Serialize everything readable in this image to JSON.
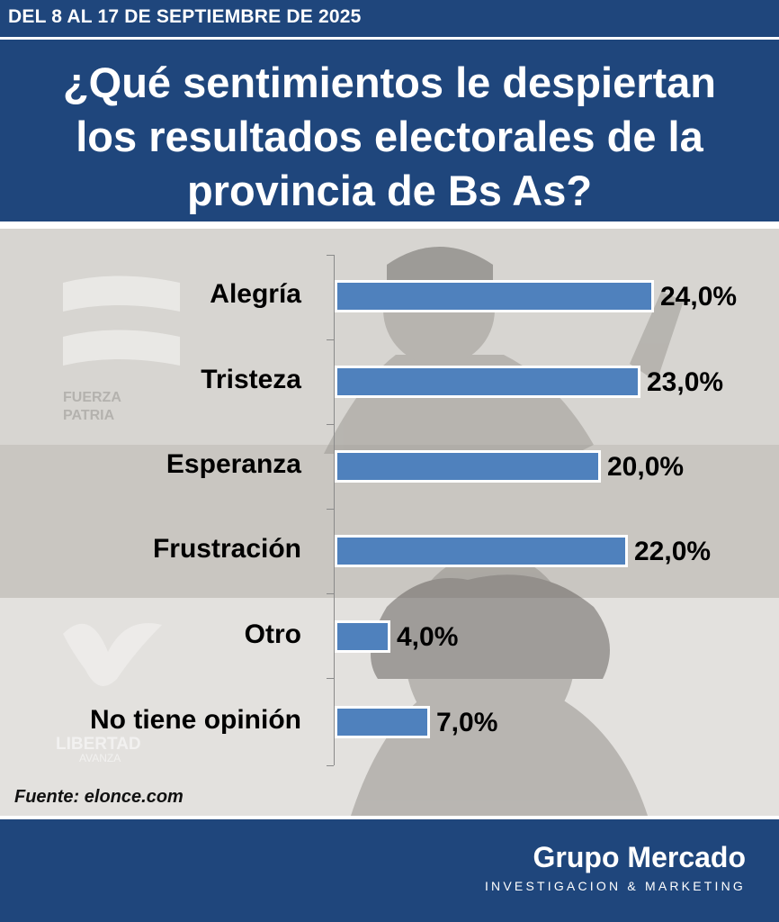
{
  "header": {
    "date": "DEL 8 AL 17 DE SEPTIEMBRE DE 2025"
  },
  "title_lines": [
    "¿Qué sentimientos le despiertan",
    "los resultados electorales de la",
    "provincia de Bs As?"
  ],
  "source": "Fuente: elonce.com",
  "brand": {
    "name": "Grupo Mercado",
    "tagline": "INVESTIGACION & MARKETING"
  },
  "background_logos": {
    "top": {
      "line1": "FUERZA",
      "line2": "PATRIA"
    },
    "bottom": {
      "line1": "LIBERTAD",
      "line2": "AVANZA"
    }
  },
  "colors": {
    "header_bg": "#1f467c",
    "bar": "#4f81bd",
    "bar_border": "#ffffff"
  },
  "chart_data": {
    "type": "bar",
    "orientation": "horizontal",
    "categories": [
      "Alegría",
      "Tristeza",
      "Esperanza",
      "Frustración",
      "Otro",
      "No tiene opinión"
    ],
    "values": [
      24.0,
      23.0,
      20.0,
      22.0,
      4.0,
      7.0
    ],
    "value_labels": [
      "24,0%",
      "23,0%",
      "20,0%",
      "22,0%",
      "4,0%",
      "7,0%"
    ],
    "title": "¿Qué sentimientos le despiertan los resultados electorales de la provincia de Bs As?",
    "xlabel": "",
    "ylabel": "",
    "xlim": [
      0,
      30
    ],
    "grid": false,
    "legend": "none"
  }
}
